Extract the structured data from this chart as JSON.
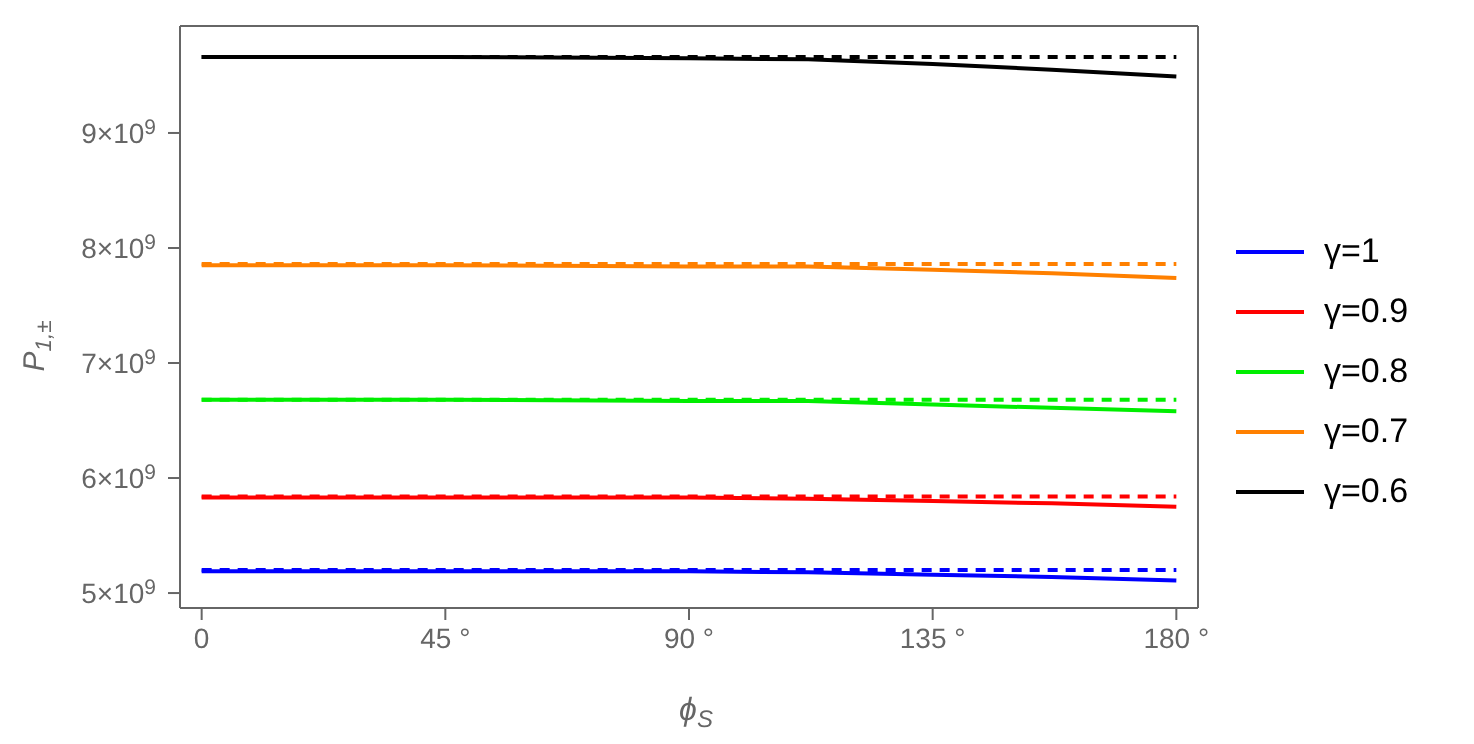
{
  "chart_data": {
    "type": "line",
    "xlabel": "ϕ$_{S}$",
    "ylabel": "P$_{1,±}$",
    "xlim": [
      -4,
      184
    ],
    "ylim": [
      4870000000,
      9930000000
    ],
    "xticks": [
      0,
      {
        "value": 45,
        "label": "45 °"
      },
      {
        "value": 90,
        "label": "90 °"
      },
      {
        "value": 135,
        "label": "135 °"
      },
      {
        "value": 180,
        "label": "180 °"
      }
    ],
    "yticks": [
      {
        "value": 5000000000,
        "label": "5×10$^{9}$"
      },
      {
        "value": 6000000000,
        "label": "6×10$^{9}$"
      },
      {
        "value": 7000000000,
        "label": "7×10$^{9}$"
      },
      {
        "value": 8000000000,
        "label": "8×10$^{9}$"
      },
      {
        "value": 9000000000,
        "label": "9×10$^{9}$"
      }
    ],
    "grid": false,
    "legend": "right",
    "marker": "none",
    "series": [
      {
        "name": "γ=1",
        "color": "#0000ff",
        "line_style": "solid",
        "x": [
          0,
          45,
          90,
          112,
          135,
          157,
          180
        ],
        "values": [
          5190000000,
          5190000000,
          5190000000,
          5180000000,
          5160000000,
          5140000000,
          5110000000
        ]
      },
      {
        "name": "γ=0.9",
        "color": "#ff0000",
        "line_style": "solid",
        "x": [
          0,
          45,
          90,
          112,
          135,
          157,
          180
        ],
        "values": [
          5830000000,
          5830000000,
          5830000000,
          5820000000,
          5800000000,
          5780000000,
          5750000000
        ]
      },
      {
        "name": "γ=0.8",
        "color": "#00ee00",
        "line_style": "solid",
        "x": [
          0,
          45,
          90,
          112,
          135,
          157,
          180
        ],
        "values": [
          6680000000,
          6680000000,
          6670000000,
          6670000000,
          6640000000,
          6610000000,
          6580000000
        ]
      },
      {
        "name": "γ=0.7",
        "color": "#ff8000",
        "line_style": "solid",
        "x": [
          0,
          45,
          90,
          112,
          135,
          157,
          180
        ],
        "values": [
          7850000000,
          7850000000,
          7840000000,
          7840000000,
          7810000000,
          7780000000,
          7740000000
        ]
      },
      {
        "name": "γ=0.6",
        "color": "#000000",
        "line_style": "solid",
        "x": [
          0,
          45,
          90,
          112,
          135,
          157,
          180
        ],
        "values": [
          9660000000,
          9660000000,
          9650000000,
          9640000000,
          9600000000,
          9550000000,
          9490000000
        ]
      },
      {
        "color": "#0000ff",
        "line_style": "dashed",
        "x": [
          0,
          180
        ],
        "values": [
          5200000000,
          5200000000
        ]
      },
      {
        "color": "#ff0000",
        "line_style": "dashed",
        "x": [
          0,
          180
        ],
        "values": [
          5840000000,
          5840000000
        ]
      },
      {
        "color": "#00ee00",
        "line_style": "dashed",
        "x": [
          0,
          180
        ],
        "values": [
          6680000000,
          6680000000
        ]
      },
      {
        "color": "#ff8000",
        "line_style": "dashed",
        "x": [
          0,
          180
        ],
        "values": [
          7860000000,
          7860000000
        ]
      },
      {
        "color": "#000000",
        "line_style": "dashed",
        "x": [
          0,
          180
        ],
        "values": [
          9660000000,
          9660000000
        ]
      }
    ]
  }
}
